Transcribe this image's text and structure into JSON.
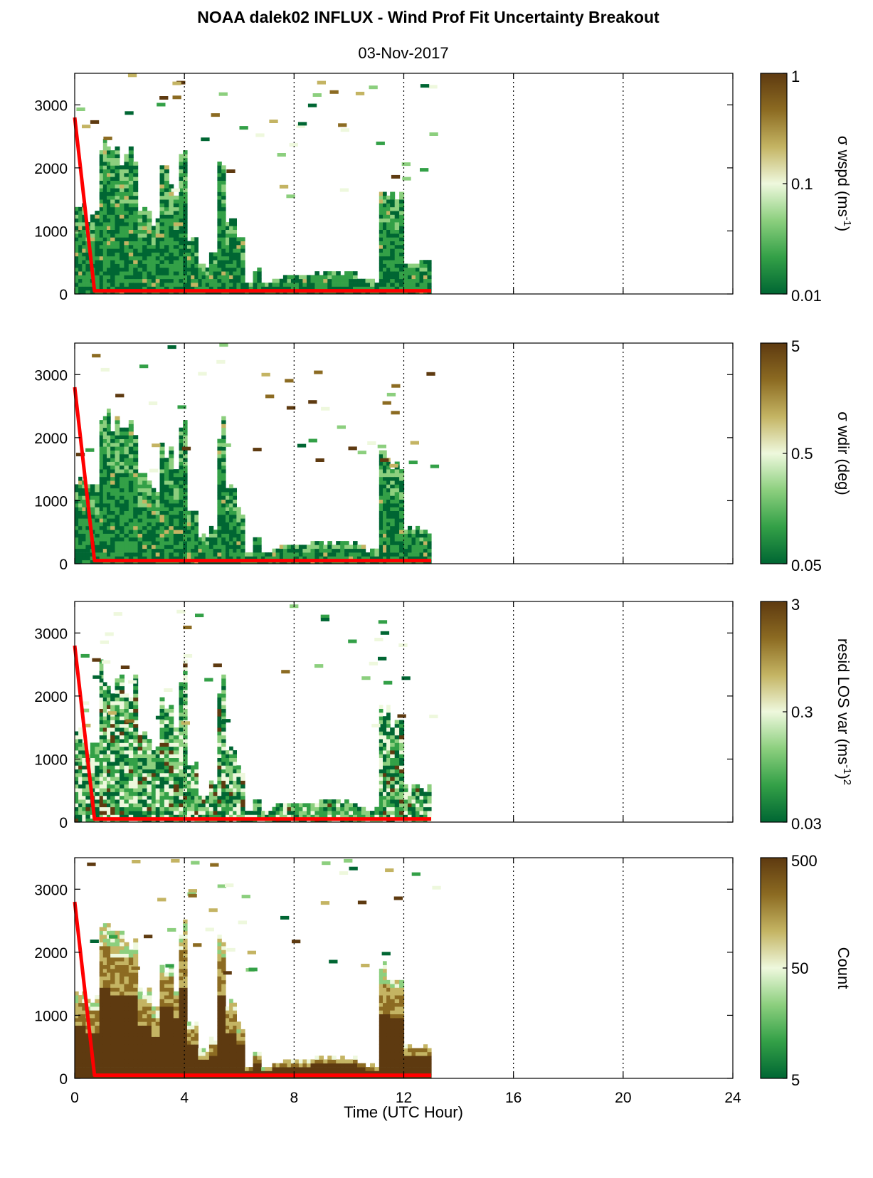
{
  "title": "NOAA dalek02 INFLUX - Wind Prof Fit Uncertainty Breakout",
  "subtitle": "03-Nov-2017",
  "chart_data": {
    "type": "heatmap",
    "xlabel": "Time (UTC Hour)",
    "xlim": [
      0,
      24
    ],
    "xticks": [
      "0",
      "4",
      "8",
      "12",
      "16",
      "20",
      "24"
    ],
    "ylim": [
      0,
      3500
    ],
    "yticks": [
      "0",
      "1000",
      "2000",
      "3000"
    ],
    "grid": "vertical dotted lines at x ticks",
    "overlay_line": {
      "color": "#ff0000",
      "points": [
        [
          0,
          2800
        ],
        [
          0.72,
          50
        ],
        [
          13,
          50
        ]
      ]
    },
    "panels": [
      {
        "colorbar_label": "σ wspd (ms",
        "colorbar_label_sup": "-1",
        "colorbar_label_end": ")",
        "colorbar_ticks": [
          "1",
          "0.1",
          "0.01"
        ],
        "scale": "log",
        "clim": [
          0.01,
          1
        ],
        "colors": [
          "#006633",
          "#33a047",
          "#8ccf7e",
          "#eef8dd",
          "#c4b463",
          "#8c6b22",
          "#5e3a10"
        ]
      },
      {
        "colorbar_label": "σ wdir (deg)",
        "colorbar_ticks": [
          "5",
          "0.5",
          "0.05"
        ],
        "scale": "log",
        "clim": [
          0.05,
          5
        ],
        "colors": [
          "#006633",
          "#33a047",
          "#8ccf7e",
          "#eef8dd",
          "#c4b463",
          "#8c6b22",
          "#5e3a10"
        ]
      },
      {
        "colorbar_label": "resid LOS var (ms",
        "colorbar_label_sup": "-1",
        "colorbar_label_end": ")",
        "colorbar_label_sup2": "2",
        "colorbar_ticks": [
          "3",
          "0.3",
          "0.03"
        ],
        "scale": "log",
        "clim": [
          0.03,
          3
        ],
        "colors": [
          "#006633",
          "#33a047",
          "#8ccf7e",
          "#eef8dd",
          "#c4b463",
          "#8c6b22",
          "#5e3a10"
        ]
      },
      {
        "colorbar_label": "Count",
        "colorbar_ticks": [
          "500",
          "50",
          "5"
        ],
        "scale": "log",
        "clim": [
          1,
          500
        ],
        "colors": [
          "#006633",
          "#33a047",
          "#8ccf7e",
          "#eef8dd",
          "#c4b463",
          "#8c6b22",
          "#5e3a10"
        ]
      }
    ],
    "profiles": [
      {
        "x0": 0.0,
        "x1": 0.4,
        "top": 1450
      },
      {
        "x0": 0.4,
        "x1": 0.9,
        "top": 1300
      },
      {
        "x0": 0.9,
        "x1": 1.3,
        "top": 2600
      },
      {
        "x0": 1.3,
        "x1": 1.8,
        "top": 2400
      },
      {
        "x0": 1.8,
        "x1": 2.3,
        "top": 2350
      },
      {
        "x0": 2.3,
        "x1": 2.8,
        "top": 1500
      },
      {
        "x0": 2.8,
        "x1": 3.1,
        "top": 1200
      },
      {
        "x0": 3.1,
        "x1": 3.6,
        "top": 2000
      },
      {
        "x0": 3.6,
        "x1": 3.8,
        "top": 1650
      },
      {
        "x0": 3.8,
        "x1": 4.1,
        "top": 2550
      },
      {
        "x0": 4.1,
        "x1": 4.5,
        "top": 950
      },
      {
        "x0": 4.5,
        "x1": 4.9,
        "top": 450
      },
      {
        "x0": 4.9,
        "x1": 5.2,
        "top": 650
      },
      {
        "x0": 5.2,
        "x1": 5.5,
        "top": 2350
      },
      {
        "x0": 5.5,
        "x1": 5.9,
        "top": 1250
      },
      {
        "x0": 5.9,
        "x1": 6.2,
        "top": 900
      },
      {
        "x0": 6.2,
        "x1": 6.5,
        "top": 180
      },
      {
        "x0": 6.5,
        "x1": 6.8,
        "top": 400
      },
      {
        "x0": 6.8,
        "x1": 7.2,
        "top": 150
      },
      {
        "x0": 7.2,
        "x1": 7.6,
        "top": 250
      },
      {
        "x0": 7.6,
        "x1": 8.6,
        "top": 300
      },
      {
        "x0": 8.6,
        "x1": 10.3,
        "top": 340
      },
      {
        "x0": 10.3,
        "x1": 10.6,
        "top": 250
      },
      {
        "x0": 10.6,
        "x1": 11.1,
        "top": 200
      },
      {
        "x0": 11.1,
        "x1": 11.5,
        "top": 1850
      },
      {
        "x0": 11.5,
        "x1": 12.0,
        "top": 1700
      },
      {
        "x0": 12.0,
        "x1": 13.0,
        "top": 560
      }
    ]
  }
}
